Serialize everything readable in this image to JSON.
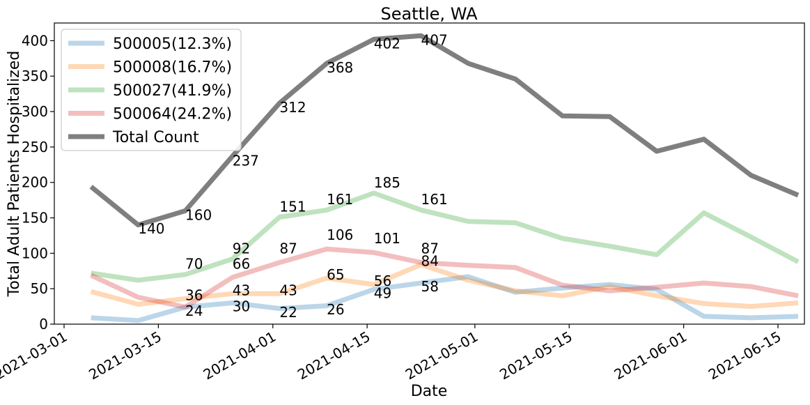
{
  "chart_data": {
    "type": "line",
    "title": "Seattle, WA",
    "xlabel": "Date",
    "ylabel": "Total Adult Patients Hospitalized",
    "ylim": [
      0,
      425
    ],
    "yticks": [
      0,
      50,
      100,
      150,
      200,
      250,
      300,
      350,
      400
    ],
    "xticks": [
      "2021-03-01",
      "2021-03-15",
      "2021-04-01",
      "2021-04-15",
      "2021-05-01",
      "2021-05-15",
      "2021-06-01",
      "2021-06-15"
    ],
    "x": [
      "2021-03-05",
      "2021-03-12",
      "2021-03-19",
      "2021-03-26",
      "2021-04-02",
      "2021-04-09",
      "2021-04-16",
      "2021-04-23",
      "2021-04-30",
      "2021-05-07",
      "2021-05-14",
      "2021-05-21",
      "2021-05-28",
      "2021-06-04",
      "2021-06-11",
      "2021-06-18"
    ],
    "legend_position": "top-left",
    "series": [
      {
        "name": "500005(12.3%)",
        "color": "#1f77b4",
        "values": [
          9,
          5,
          24,
          30,
          22,
          26,
          49,
          58,
          67,
          45,
          51,
          56,
          49,
          11,
          9,
          11
        ]
      },
      {
        "name": "500008(16.7%)",
        "color": "#ff7f0e",
        "values": [
          46,
          28,
          36,
          43,
          43,
          65,
          56,
          84,
          62,
          47,
          40,
          53,
          40,
          29,
          25,
          30
        ]
      },
      {
        "name": "500027(41.9%)",
        "color": "#2ca02c",
        "values": [
          72,
          62,
          70,
          92,
          151,
          161,
          185,
          161,
          145,
          143,
          121,
          110,
          98,
          157,
          123,
          88
        ]
      },
      {
        "name": "500064(24.2%)",
        "color": "#d62728",
        "values": [
          69,
          38,
          24,
          66,
          87,
          106,
          101,
          87,
          83,
          80,
          55,
          47,
          52,
          58,
          53,
          40
        ]
      },
      {
        "name": "Total Count",
        "color": "#7f7f7f",
        "values": [
          194,
          140,
          160,
          237,
          312,
          368,
          402,
          407,
          368,
          346,
          294,
          293,
          244,
          261,
          210,
          182
        ]
      }
    ],
    "annotations": [
      {
        "text": "140",
        "x": "2021-03-12",
        "y": 128
      },
      {
        "text": "160",
        "x": "2021-03-19",
        "y": 147
      },
      {
        "text": "237",
        "x": "2021-03-26",
        "y": 224
      },
      {
        "text": "312",
        "x": "2021-04-02",
        "y": 299
      },
      {
        "text": "368",
        "x": "2021-04-09",
        "y": 355
      },
      {
        "text": "402",
        "x": "2021-04-16",
        "y": 389
      },
      {
        "text": "407",
        "x": "2021-04-23",
        "y": 394
      },
      {
        "text": "70",
        "x": "2021-03-19",
        "y": 78
      },
      {
        "text": "92",
        "x": "2021-03-26",
        "y": 100
      },
      {
        "text": "151",
        "x": "2021-04-02",
        "y": 159
      },
      {
        "text": "161",
        "x": "2021-04-09",
        "y": 169
      },
      {
        "text": "185",
        "x": "2021-04-16",
        "y": 193
      },
      {
        "text": "161",
        "x": "2021-04-23",
        "y": 169
      },
      {
        "text": "66",
        "x": "2021-03-26",
        "y": 78
      },
      {
        "text": "87",
        "x": "2021-04-02",
        "y": 100
      },
      {
        "text": "106",
        "x": "2021-04-09",
        "y": 119
      },
      {
        "text": "101",
        "x": "2021-04-16",
        "y": 114
      },
      {
        "text": "87",
        "x": "2021-04-23",
        "y": 100
      },
      {
        "text": "36",
        "x": "2021-03-19",
        "y": 34
      },
      {
        "text": "43",
        "x": "2021-03-26",
        "y": 41
      },
      {
        "text": "43",
        "x": "2021-04-02",
        "y": 41
      },
      {
        "text": "65",
        "x": "2021-04-09",
        "y": 63
      },
      {
        "text": "56",
        "x": "2021-04-16",
        "y": 54
      },
      {
        "text": "84",
        "x": "2021-04-23",
        "y": 82
      },
      {
        "text": "24",
        "x": "2021-03-19",
        "y": 12
      },
      {
        "text": "30",
        "x": "2021-03-26",
        "y": 18
      },
      {
        "text": "22",
        "x": "2021-04-02",
        "y": 10
      },
      {
        "text": "26",
        "x": "2021-04-09",
        "y": 14
      },
      {
        "text": "49",
        "x": "2021-04-16",
        "y": 37
      },
      {
        "text": "58",
        "x": "2021-04-23",
        "y": 46
      }
    ]
  }
}
